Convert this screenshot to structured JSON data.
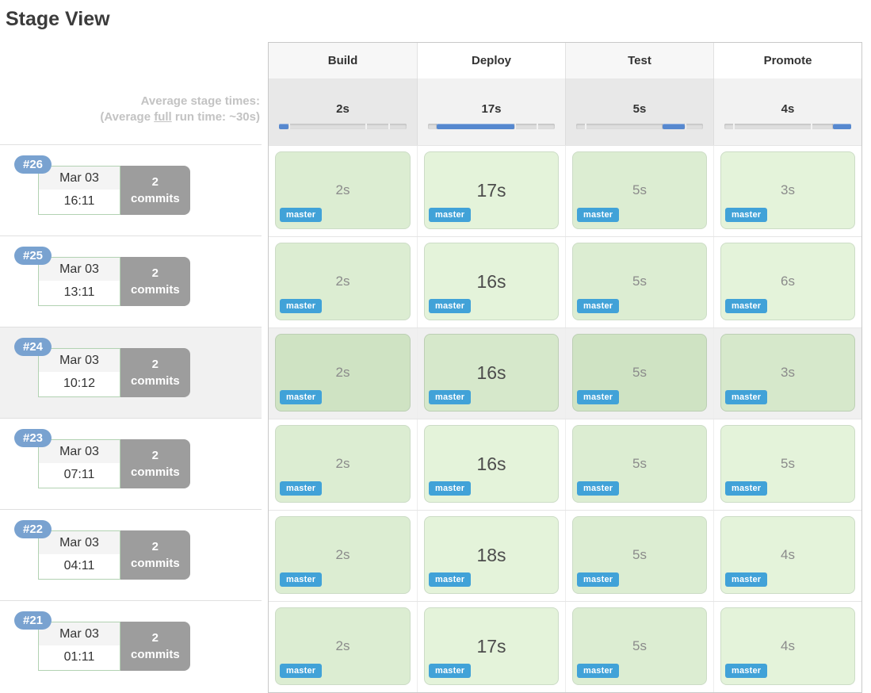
{
  "page": {
    "title": "Stage View"
  },
  "avg_label": {
    "line1": "Average stage times:",
    "line2_pre": "(Average ",
    "line2_em": "full",
    "line2_post": " run time: ~30s)"
  },
  "columns": [
    {
      "label": "Build",
      "avg": "2s",
      "bar": {
        "start": 0,
        "width": 7.1
      }
    },
    {
      "label": "Deploy",
      "avg": "17s",
      "bar": {
        "start": 7.1,
        "width": 60.8
      }
    },
    {
      "label": "Test",
      "avg": "5s",
      "bar": {
        "start": 67.9,
        "width": 17.8
      }
    },
    {
      "label": "Promote",
      "avg": "4s",
      "bar": {
        "start": 85.7,
        "width": 14.3
      }
    }
  ],
  "bar_boundaries": [
    7.1,
    67.9,
    85.7
  ],
  "runs": [
    {
      "id": "#26",
      "date": "Mar 03",
      "time": "16:11",
      "commits": "2",
      "commits_label": "commits",
      "branch": "master",
      "highlighted": false,
      "stages": [
        {
          "duration": "2s",
          "emphasis": false
        },
        {
          "duration": "17s",
          "emphasis": true
        },
        {
          "duration": "5s",
          "emphasis": false
        },
        {
          "duration": "3s",
          "emphasis": false
        }
      ]
    },
    {
      "id": "#25",
      "date": "Mar 03",
      "time": "13:11",
      "commits": "2",
      "commits_label": "commits",
      "branch": "master",
      "highlighted": false,
      "stages": [
        {
          "duration": "2s",
          "emphasis": false
        },
        {
          "duration": "16s",
          "emphasis": true
        },
        {
          "duration": "5s",
          "emphasis": false
        },
        {
          "duration": "6s",
          "emphasis": false
        }
      ]
    },
    {
      "id": "#24",
      "date": "Mar 03",
      "time": "10:12",
      "commits": "2",
      "commits_label": "commits",
      "branch": "master",
      "highlighted": true,
      "stages": [
        {
          "duration": "2s",
          "emphasis": false
        },
        {
          "duration": "16s",
          "emphasis": true
        },
        {
          "duration": "5s",
          "emphasis": false
        },
        {
          "duration": "3s",
          "emphasis": false
        }
      ]
    },
    {
      "id": "#23",
      "date": "Mar 03",
      "time": "07:11",
      "commits": "2",
      "commits_label": "commits",
      "branch": "master",
      "highlighted": false,
      "stages": [
        {
          "duration": "2s",
          "emphasis": false
        },
        {
          "duration": "16s",
          "emphasis": true
        },
        {
          "duration": "5s",
          "emphasis": false
        },
        {
          "duration": "5s",
          "emphasis": false
        }
      ]
    },
    {
      "id": "#22",
      "date": "Mar 03",
      "time": "04:11",
      "commits": "2",
      "commits_label": "commits",
      "branch": "master",
      "highlighted": false,
      "stages": [
        {
          "duration": "2s",
          "emphasis": false
        },
        {
          "duration": "18s",
          "emphasis": true
        },
        {
          "duration": "5s",
          "emphasis": false
        },
        {
          "duration": "4s",
          "emphasis": false
        }
      ]
    },
    {
      "id": "#21",
      "date": "Mar 03",
      "time": "01:11",
      "commits": "2",
      "commits_label": "commits",
      "branch": "master",
      "highlighted": false,
      "stages": [
        {
          "duration": "2s",
          "emphasis": false
        },
        {
          "duration": "17s",
          "emphasis": true
        },
        {
          "duration": "5s",
          "emphasis": false
        },
        {
          "duration": "4s",
          "emphasis": false
        }
      ]
    }
  ],
  "colors": {
    "run_badge_blue": "#79a2d0",
    "branch_badge_blue": "#41a2d8",
    "bar_fill_blue": "#5688cf",
    "stage_green": "#e4f3da",
    "stage_green_striped": "#dcedd2",
    "commits_gray": "#9d9d9d"
  }
}
